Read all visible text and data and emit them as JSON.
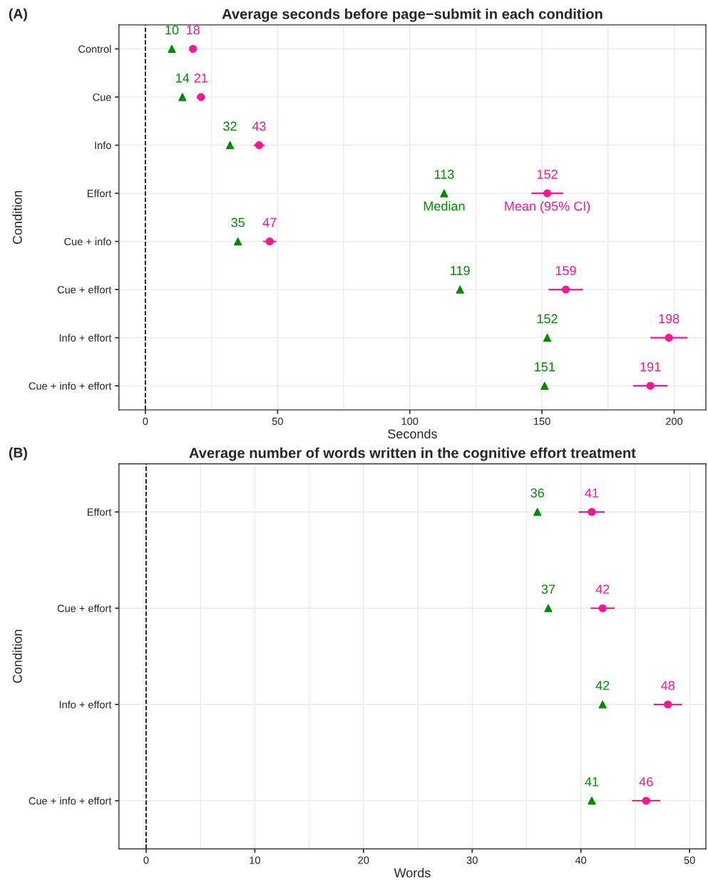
{
  "chart_data": [
    {
      "type": "scatter",
      "orientation": "horizontal",
      "title": "Average seconds before page−submit in each condition",
      "xlabel": "Seconds",
      "ylabel": "Condition",
      "categories": [
        "Control",
        "Cue",
        "Info",
        "Effort",
        "Cue + info",
        "Cue + effort",
        "Info + effort",
        "Cue + info + effort"
      ],
      "series": [
        {
          "color": "#008b00",
          "marker": "triangle",
          "values": [
            10,
            14,
            32,
            113,
            35,
            119,
            152,
            151
          ]
        },
        {
          "color": "#ff1493",
          "marker": "circle",
          "values": [
            18,
            21,
            43,
            152,
            47,
            159,
            198,
            191
          ],
          "errors": [
            1.5,
            1.5,
            2,
            6,
            2.5,
            6.5,
            7,
            6.5
          ]
        }
      ],
      "data_labels": true,
      "xlim": [
        -10,
        212
      ],
      "xticks": [
        0,
        50,
        100,
        150,
        200
      ],
      "grid": true,
      "legend": false,
      "ref_lines": [
        {
          "axis": "x",
          "value": 0,
          "line_style": "dashed",
          "color": "#000000"
        }
      ],
      "annotations": [
        "(A)",
        {
          "text": "Median",
          "x": 113,
          "y": "Effort"
        },
        {
          "text": "Mean (95% CI)",
          "x": 152,
          "y": "Effort"
        }
      ]
    },
    {
      "type": "scatter",
      "orientation": "horizontal",
      "title": "Average number of words written in the cognitive effort treatment",
      "xlabel": "Words",
      "ylabel": "Condition",
      "categories": [
        "Effort",
        "Cue + effort",
        "Info + effort",
        "Cue + info + effort"
      ],
      "series": [
        {
          "color": "#008b00",
          "marker": "triangle",
          "values": [
            36,
            37,
            42,
            41
          ]
        },
        {
          "color": "#ff1493",
          "marker": "circle",
          "values": [
            41,
            42,
            48,
            46
          ],
          "errors": [
            1.2,
            1.1,
            1.3,
            1.3
          ]
        }
      ],
      "data_labels": true,
      "xlim": [
        -2.5,
        51.5
      ],
      "xticks": [
        0,
        10,
        20,
        30,
        40,
        50
      ],
      "grid": true,
      "legend": false,
      "ref_lines": [
        {
          "axis": "x",
          "value": 0,
          "line_style": "dashed",
          "color": "#000000"
        }
      ],
      "annotations": [
        "(B)"
      ]
    }
  ]
}
